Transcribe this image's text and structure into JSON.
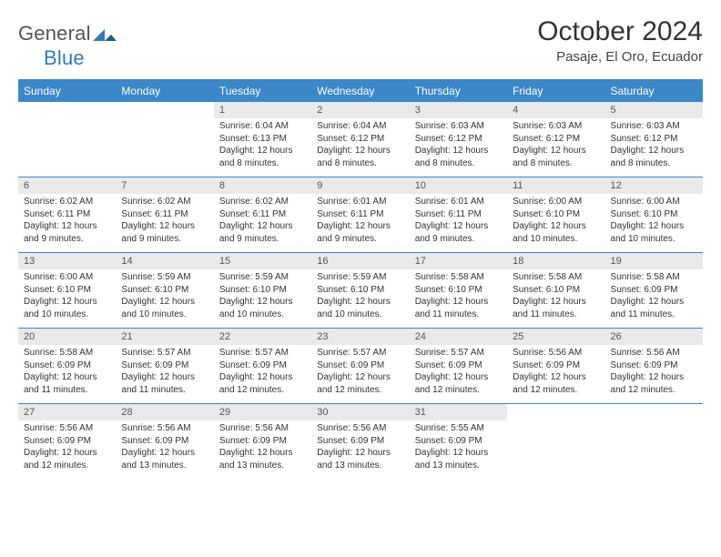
{
  "brand": {
    "part1": "General",
    "part2": "Blue"
  },
  "title": "October 2024",
  "location": "Pasaje, El Oro, Ecuador",
  "colors": {
    "headerBlue": "#3b87c8",
    "dayNumBg": "#e9e9e9",
    "text": "#333333",
    "logoBlue": "#2f7bbf"
  },
  "weekdays": [
    "Sunday",
    "Monday",
    "Tuesday",
    "Wednesday",
    "Thursday",
    "Friday",
    "Saturday"
  ],
  "weeks": [
    [
      null,
      null,
      {
        "n": "1",
        "sr": "Sunrise: 6:04 AM",
        "ss": "Sunset: 6:13 PM",
        "dl": "Daylight: 12 hours and 8 minutes."
      },
      {
        "n": "2",
        "sr": "Sunrise: 6:04 AM",
        "ss": "Sunset: 6:12 PM",
        "dl": "Daylight: 12 hours and 8 minutes."
      },
      {
        "n": "3",
        "sr": "Sunrise: 6:03 AM",
        "ss": "Sunset: 6:12 PM",
        "dl": "Daylight: 12 hours and 8 minutes."
      },
      {
        "n": "4",
        "sr": "Sunrise: 6:03 AM",
        "ss": "Sunset: 6:12 PM",
        "dl": "Daylight: 12 hours and 8 minutes."
      },
      {
        "n": "5",
        "sr": "Sunrise: 6:03 AM",
        "ss": "Sunset: 6:12 PM",
        "dl": "Daylight: 12 hours and 8 minutes."
      }
    ],
    [
      {
        "n": "6",
        "sr": "Sunrise: 6:02 AM",
        "ss": "Sunset: 6:11 PM",
        "dl": "Daylight: 12 hours and 9 minutes."
      },
      {
        "n": "7",
        "sr": "Sunrise: 6:02 AM",
        "ss": "Sunset: 6:11 PM",
        "dl": "Daylight: 12 hours and 9 minutes."
      },
      {
        "n": "8",
        "sr": "Sunrise: 6:02 AM",
        "ss": "Sunset: 6:11 PM",
        "dl": "Daylight: 12 hours and 9 minutes."
      },
      {
        "n": "9",
        "sr": "Sunrise: 6:01 AM",
        "ss": "Sunset: 6:11 PM",
        "dl": "Daylight: 12 hours and 9 minutes."
      },
      {
        "n": "10",
        "sr": "Sunrise: 6:01 AM",
        "ss": "Sunset: 6:11 PM",
        "dl": "Daylight: 12 hours and 9 minutes."
      },
      {
        "n": "11",
        "sr": "Sunrise: 6:00 AM",
        "ss": "Sunset: 6:10 PM",
        "dl": "Daylight: 12 hours and 10 minutes."
      },
      {
        "n": "12",
        "sr": "Sunrise: 6:00 AM",
        "ss": "Sunset: 6:10 PM",
        "dl": "Daylight: 12 hours and 10 minutes."
      }
    ],
    [
      {
        "n": "13",
        "sr": "Sunrise: 6:00 AM",
        "ss": "Sunset: 6:10 PM",
        "dl": "Daylight: 12 hours and 10 minutes."
      },
      {
        "n": "14",
        "sr": "Sunrise: 5:59 AM",
        "ss": "Sunset: 6:10 PM",
        "dl": "Daylight: 12 hours and 10 minutes."
      },
      {
        "n": "15",
        "sr": "Sunrise: 5:59 AM",
        "ss": "Sunset: 6:10 PM",
        "dl": "Daylight: 12 hours and 10 minutes."
      },
      {
        "n": "16",
        "sr": "Sunrise: 5:59 AM",
        "ss": "Sunset: 6:10 PM",
        "dl": "Daylight: 12 hours and 10 minutes."
      },
      {
        "n": "17",
        "sr": "Sunrise: 5:58 AM",
        "ss": "Sunset: 6:10 PM",
        "dl": "Daylight: 12 hours and 11 minutes."
      },
      {
        "n": "18",
        "sr": "Sunrise: 5:58 AM",
        "ss": "Sunset: 6:10 PM",
        "dl": "Daylight: 12 hours and 11 minutes."
      },
      {
        "n": "19",
        "sr": "Sunrise: 5:58 AM",
        "ss": "Sunset: 6:09 PM",
        "dl": "Daylight: 12 hours and 11 minutes."
      }
    ],
    [
      {
        "n": "20",
        "sr": "Sunrise: 5:58 AM",
        "ss": "Sunset: 6:09 PM",
        "dl": "Daylight: 12 hours and 11 minutes."
      },
      {
        "n": "21",
        "sr": "Sunrise: 5:57 AM",
        "ss": "Sunset: 6:09 PM",
        "dl": "Daylight: 12 hours and 11 minutes."
      },
      {
        "n": "22",
        "sr": "Sunrise: 5:57 AM",
        "ss": "Sunset: 6:09 PM",
        "dl": "Daylight: 12 hours and 12 minutes."
      },
      {
        "n": "23",
        "sr": "Sunrise: 5:57 AM",
        "ss": "Sunset: 6:09 PM",
        "dl": "Daylight: 12 hours and 12 minutes."
      },
      {
        "n": "24",
        "sr": "Sunrise: 5:57 AM",
        "ss": "Sunset: 6:09 PM",
        "dl": "Daylight: 12 hours and 12 minutes."
      },
      {
        "n": "25",
        "sr": "Sunrise: 5:56 AM",
        "ss": "Sunset: 6:09 PM",
        "dl": "Daylight: 12 hours and 12 minutes."
      },
      {
        "n": "26",
        "sr": "Sunrise: 5:56 AM",
        "ss": "Sunset: 6:09 PM",
        "dl": "Daylight: 12 hours and 12 minutes."
      }
    ],
    [
      {
        "n": "27",
        "sr": "Sunrise: 5:56 AM",
        "ss": "Sunset: 6:09 PM",
        "dl": "Daylight: 12 hours and 12 minutes."
      },
      {
        "n": "28",
        "sr": "Sunrise: 5:56 AM",
        "ss": "Sunset: 6:09 PM",
        "dl": "Daylight: 12 hours and 13 minutes."
      },
      {
        "n": "29",
        "sr": "Sunrise: 5:56 AM",
        "ss": "Sunset: 6:09 PM",
        "dl": "Daylight: 12 hours and 13 minutes."
      },
      {
        "n": "30",
        "sr": "Sunrise: 5:56 AM",
        "ss": "Sunset: 6:09 PM",
        "dl": "Daylight: 12 hours and 13 minutes."
      },
      {
        "n": "31",
        "sr": "Sunrise: 5:55 AM",
        "ss": "Sunset: 6:09 PM",
        "dl": "Daylight: 12 hours and 13 minutes."
      },
      null,
      null
    ]
  ]
}
